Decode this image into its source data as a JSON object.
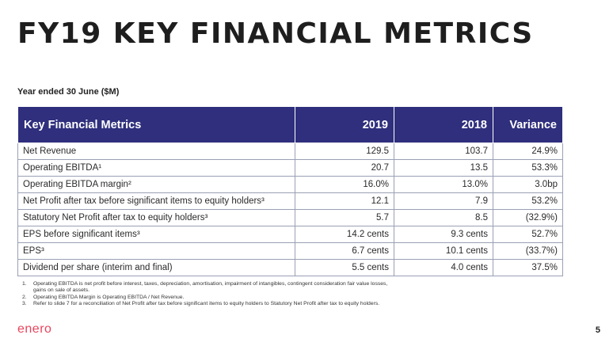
{
  "title": "FY19 KEY FINANCIAL METRICS",
  "subtitle": "Year ended 30 June ($M)",
  "table": {
    "headers": [
      "Key Financial Metrics",
      "2019",
      "2018",
      "Variance"
    ],
    "rows": [
      [
        "Net Revenue",
        "129.5",
        "103.7",
        "24.9%"
      ],
      [
        "Operating EBITDA¹",
        "20.7",
        "13.5",
        "53.3%"
      ],
      [
        "Operating EBITDA margin²",
        "16.0%",
        "13.0%",
        "3.0bp"
      ],
      [
        "Net Profit after tax before significant items to equity holders³",
        "12.1",
        "7.9",
        "53.2%"
      ],
      [
        "Statutory Net Profit after tax to equity holders³",
        "5.7",
        "8.5",
        "(32.9%)"
      ],
      [
        "EPS before significant items³",
        "14.2 cents",
        "9.3 cents",
        "52.7%"
      ],
      [
        "EPS³",
        "6.7 cents",
        "10.1 cents",
        "(33.7%)"
      ],
      [
        "Dividend per share (interim and final)",
        "5.5 cents",
        "4.0 cents",
        "37.5%"
      ]
    ]
  },
  "footnotes": [
    {
      "num": "1.",
      "text": "Operating EBITDA is net profit before interest, taxes, depreciation, amortisation, impairment of intangibles, contingent consideration fair value losses, gains on sale of assets."
    },
    {
      "num": "2.",
      "text": "Operating EBITDA Margin is Operating EBITDA / Net Revenue."
    },
    {
      "num": "3.",
      "text": "Refer to slide 7 for a reconciliation of Net Profit after tax before significant items to equity holders to Statutory Net Profit after tax to equity holders."
    }
  ],
  "logo_text": "enero",
  "page_number": "5",
  "colors": {
    "header_bg": "#2f2f7e",
    "logo": "#e8455c",
    "border": "#9aa0b4"
  }
}
